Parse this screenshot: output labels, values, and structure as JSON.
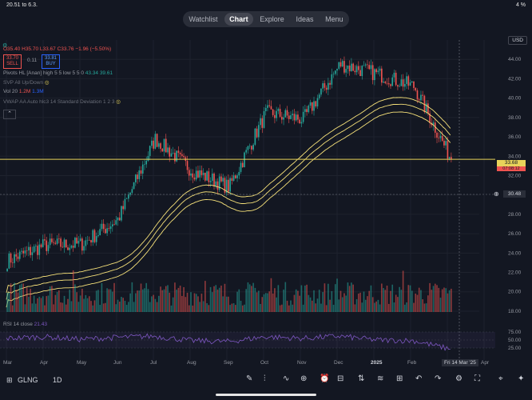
{
  "status": {
    "time": "20.51",
    "date": "to 6.3.",
    "battery": "4 %"
  },
  "nav": [
    "Watchlist",
    "Chart",
    "Explore",
    "Ideas",
    "Menu"
  ],
  "legend": {
    "ohlc": "O35.40 H35.70 L33.67 C33.76 −1.96 (−5.50%)",
    "sell_price": "33.70",
    "sell_label": "SELL",
    "spread": "0.11",
    "buy_price": "33.81",
    "buy_label": "BUY",
    "pivots": "Pivots HL [Anan] high 5 5 low 5 5 0",
    "pivots_vals": "43.34  39.61",
    "svp": "SVP All Up/Down",
    "vol": "Vol 20",
    "vol1": "1.2M",
    "vol2": "1.3M",
    "vwap": "VWAP AA Auto hlc3 14 Standard Deviation 1 2 3",
    "rsi": "RSI 14 close",
    "rsi_val": "21.43"
  },
  "currency": "USD",
  "price_tags": {
    "last": "33.68",
    "cursor": "30.48",
    "countdown": "07:08:12"
  },
  "bottom": {
    "symbol": "GLNG",
    "interval": "1D",
    "date_tooltip": "Fri 14 Mar '25"
  },
  "colors": {
    "up": "#26a69a",
    "down": "#ef5350",
    "vwap": "#f7e27a",
    "hline": "#e8d35a",
    "rsi": "#7e57c2",
    "bg": "#131722"
  },
  "chart_data": [
    {
      "type": "line",
      "title": "",
      "xlabel": "",
      "ylabel": "",
      "x_tick_labels": [
        "Mar",
        "Apr",
        "May",
        "Jun",
        "Jul",
        "Aug",
        "Sep",
        "Oct",
        "Nov",
        "Dec",
        "2025",
        "Feb",
        "Mar",
        "Apr"
      ],
      "y_tick_labels": [
        "18.00",
        "20.00",
        "22.00",
        "24.00",
        "26.00",
        "28.00",
        "30.00",
        "32.00",
        "34.00",
        "36.00",
        "38.00",
        "40.00",
        "42.00",
        "44.00"
      ],
      "ylim": [
        17.5,
        46
      ],
      "x": [
        "2024-03",
        "2024-04",
        "2024-05",
        "2024-06",
        "2024-07",
        "2024-08",
        "2024-09",
        "2024-10",
        "2024-11",
        "2024-12",
        "2025-01",
        "2025-02",
        "2025-03"
      ],
      "series": [
        {
          "values": [
            23.2,
            24.8,
            24.9,
            27.5,
            35.8,
            32.5,
            30.8,
            38.5,
            37.8,
            43.5,
            42.5,
            41.2,
            33.7
          ]
        }
      ],
      "grid": true,
      "horizontal_line": 33.68
    },
    {
      "type": "line",
      "title": "",
      "y_tick_labels": [
        "25.00",
        "50.00",
        "75.00"
      ],
      "ylim": [
        0,
        100
      ],
      "series": [
        {
          "values": [
            55,
            60,
            52,
            58,
            62,
            48,
            45,
            60,
            55,
            62,
            50,
            48,
            21.43
          ]
        }
      ]
    }
  ]
}
